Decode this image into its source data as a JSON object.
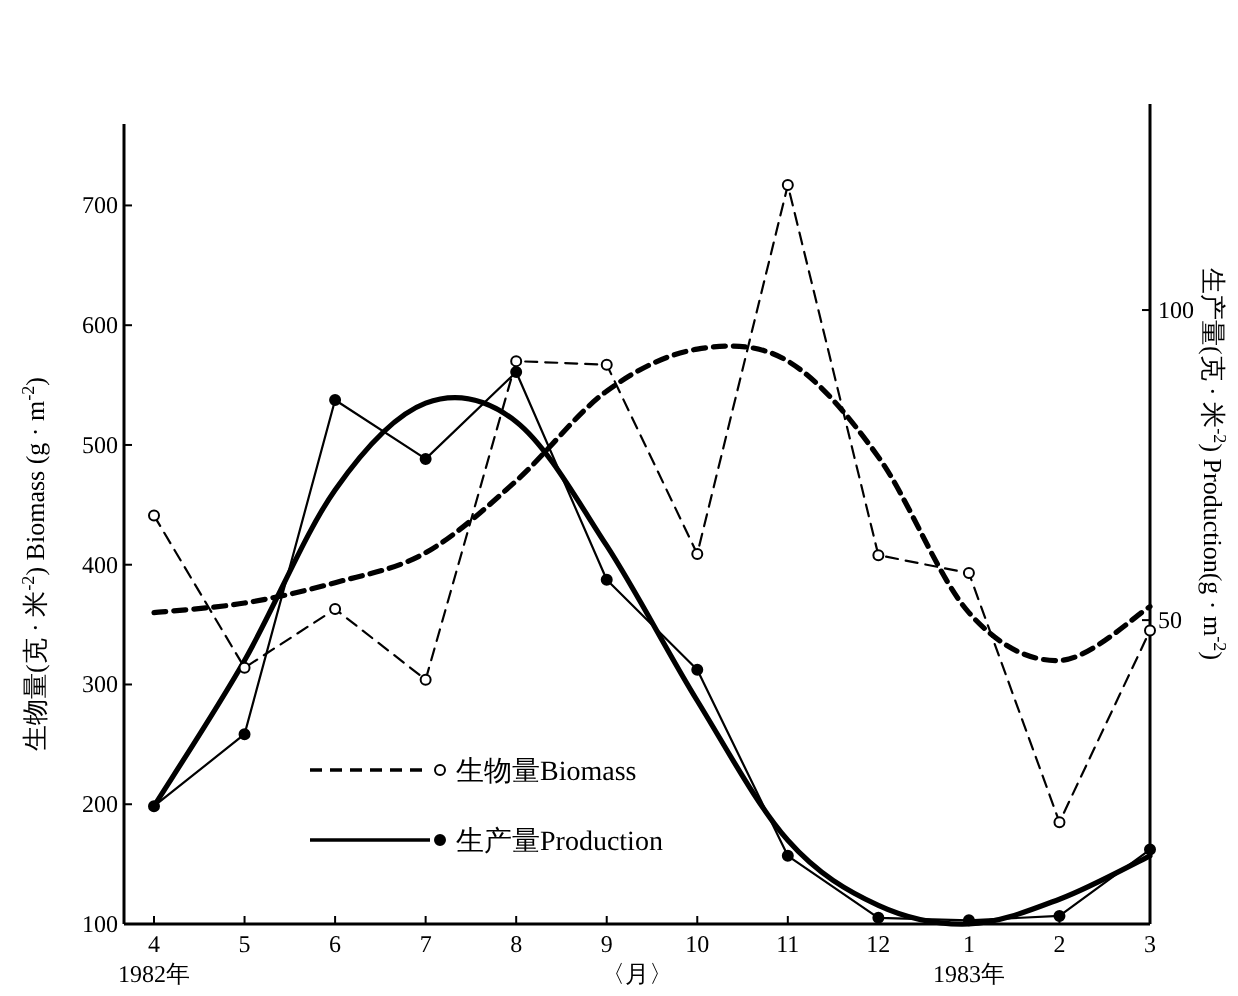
{
  "chart_data": {
    "type": "line",
    "categories": [
      "4",
      "5",
      "6",
      "7",
      "8",
      "9",
      "10",
      "11",
      "12",
      "1",
      "2",
      "3"
    ],
    "xlabel": "〈月〉",
    "annotations": [
      "1982年",
      "1983年"
    ],
    "ylabel": "生物量(克 · 米$^{-2}$) Biomass (g · m$^{-2}$)",
    "y2label": "生产量(克 · 米$^{-2}$) Production(g · m$^{-2}$)",
    "ylim": [
      100,
      768
    ],
    "yticks": [
      100,
      200,
      300,
      400,
      500,
      600,
      700
    ],
    "y2lim": [
      1,
      130
    ],
    "y2ticks": [
      50,
      100
    ],
    "legend": "bottom",
    "grid": false,
    "series": [
      {
        "name": "生物量Biomass",
        "color": "#000000",
        "line_style": "dashed",
        "marker": "circle",
        "values": [
          441,
          314,
          363,
          304,
          570,
          567,
          409,
          717,
          408,
          393,
          185,
          345
        ]
      },
      {
        "color": "#000000",
        "line_style": "dashed",
        "marker": "none",
        "values": [
          360,
          368,
          385,
          410,
          470,
          545,
          580,
          570,
          490,
          360,
          320,
          365
        ]
      },
      {
        "name": "生产量Production",
        "color": "#000000",
        "line_style": "solid",
        "marker": "circle",
        "axis": "y2",
        "values": [
          20,
          31.6,
          85.5,
          76,
          90,
          56.5,
          42,
          12,
          2,
          1.6,
          2.3,
          13
        ]
      },
      {
        "color": "#000000",
        "line_style": "solid",
        "marker": "none",
        "axis": "y2",
        "values": [
          20,
          43.5,
          71,
          85,
          82,
          62,
          37,
          14.5,
          4,
          1,
          5,
          12
        ]
      }
    ]
  }
}
